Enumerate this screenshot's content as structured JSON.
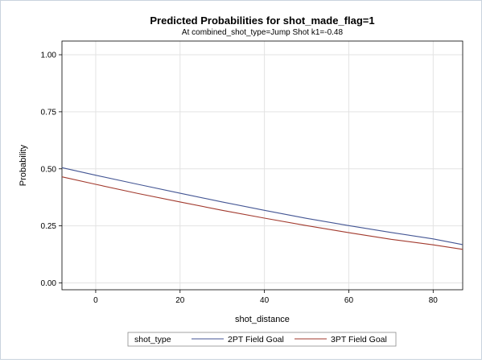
{
  "chart_data": {
    "type": "line",
    "title": "Predicted Probabilities for shot_made_flag=1",
    "subtitle": "At combined_shot_type=Jump Shot k1=-0.48",
    "xlabel": "shot_distance",
    "ylabel": "Probability",
    "xlim": [
      -8,
      87
    ],
    "ylim": [
      -0.03,
      1.06
    ],
    "xticks": [
      0,
      20,
      40,
      60,
      80
    ],
    "xtick_labels": [
      "0",
      "20",
      "40",
      "60",
      "80"
    ],
    "yticks": [
      0,
      0.25,
      0.5,
      0.75,
      1.0
    ],
    "ytick_labels": [
      "0.00",
      "0.25",
      "0.50",
      "0.75",
      "1.00"
    ],
    "grid": true,
    "legend_title": "shot_type",
    "legend_position": "bottom",
    "series": [
      {
        "name": "2PT Field Goal",
        "color": "#445694",
        "x": [
          -8,
          0,
          10,
          20,
          30,
          40,
          50,
          60,
          70,
          80,
          87
        ],
        "y": [
          0.505,
          0.472,
          0.432,
          0.393,
          0.355,
          0.318,
          0.283,
          0.251,
          0.221,
          0.193,
          0.168
        ]
      },
      {
        "name": "3PT Field Goal",
        "color": "#a23a2e",
        "x": [
          -8,
          0,
          10,
          20,
          30,
          40,
          50,
          60,
          70,
          80,
          87
        ],
        "y": [
          0.465,
          0.432,
          0.392,
          0.355,
          0.318,
          0.284,
          0.251,
          0.22,
          0.191,
          0.167,
          0.147
        ]
      }
    ]
  }
}
